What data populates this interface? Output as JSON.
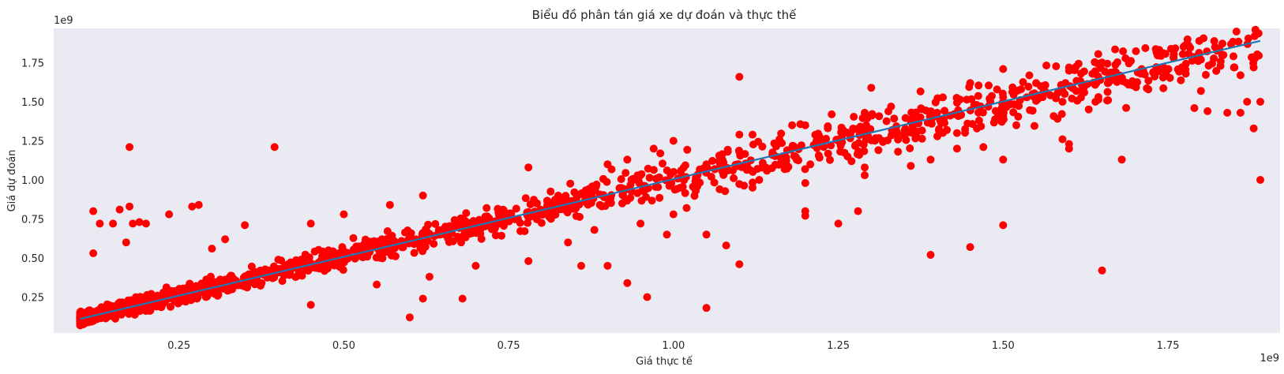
{
  "chart_data": {
    "type": "scatter",
    "title": "Biểu đồ phân tán giá xe dự đoán và thực thế",
    "xlabel": "Giá thực tế",
    "ylabel": "Giá dự đoán",
    "x_offset_text": "1e9",
    "y_offset_text": "1e9",
    "xlim": [
      0.06,
      1.92
    ],
    "ylim": [
      0.02,
      1.97
    ],
    "xticks": [
      0.25,
      0.5,
      0.75,
      1.0,
      1.25,
      1.5,
      1.75
    ],
    "xtick_labels": [
      "0.25",
      "0.50",
      "0.75",
      "1.00",
      "1.25",
      "1.50",
      "1.75"
    ],
    "yticks": [
      0.25,
      0.5,
      0.75,
      1.0,
      1.25,
      1.5,
      1.75
    ],
    "ytick_labels": [
      "0.25",
      "0.50",
      "0.75",
      "1.00",
      "1.25",
      "1.50",
      "1.75"
    ],
    "grid": false,
    "background_color": "#eaeaf2",
    "point_color": "#ff0000",
    "line_color": "#1f77b4",
    "trend_line": {
      "x": [
        0.1,
        1.89
      ],
      "y": [
        0.11,
        1.89
      ]
    },
    "scatter_band": {
      "x_min": 0.1,
      "x_max": 1.89,
      "slope": 0.995,
      "intercept": 0.012,
      "count": 1700
    },
    "outliers": [
      [
        0.175,
        1.21
      ],
      [
        0.395,
        1.21
      ],
      [
        0.12,
        0.8
      ],
      [
        0.13,
        0.72
      ],
      [
        0.15,
        0.72
      ],
      [
        0.16,
        0.81
      ],
      [
        0.175,
        0.83
      ],
      [
        0.18,
        0.72
      ],
      [
        0.19,
        0.73
      ],
      [
        0.2,
        0.72
      ],
      [
        0.235,
        0.78
      ],
      [
        0.27,
        0.83
      ],
      [
        0.28,
        0.84
      ],
      [
        0.17,
        0.6
      ],
      [
        0.12,
        0.53
      ],
      [
        0.35,
        0.71
      ],
      [
        0.45,
        0.2
      ],
      [
        0.6,
        0.12
      ],
      [
        0.62,
        0.24
      ],
      [
        0.68,
        0.24
      ],
      [
        0.86,
        0.45
      ],
      [
        0.9,
        0.45
      ],
      [
        0.93,
        0.34
      ],
      [
        0.96,
        0.25
      ],
      [
        1.05,
        0.18
      ],
      [
        1.08,
        0.58
      ],
      [
        1.1,
        0.46
      ],
      [
        1.1,
        1.66
      ],
      [
        1.2,
        0.8
      ],
      [
        1.2,
        0.77
      ],
      [
        1.25,
        0.72
      ],
      [
        1.28,
        0.8
      ],
      [
        1.3,
        1.59
      ],
      [
        1.39,
        0.52
      ],
      [
        1.45,
        0.57
      ],
      [
        1.5,
        0.71
      ],
      [
        1.5,
        1.71
      ],
      [
        1.6,
        1.72
      ],
      [
        1.65,
        0.42
      ],
      [
        1.68,
        1.13
      ],
      [
        1.79,
        1.46
      ],
      [
        1.8,
        1.57
      ],
      [
        1.81,
        1.44
      ],
      [
        1.84,
        1.43
      ],
      [
        1.86,
        1.43
      ],
      [
        1.87,
        1.5
      ],
      [
        1.88,
        1.72
      ],
      [
        1.88,
        1.33
      ],
      [
        1.89,
        1.5
      ],
      [
        1.89,
        1.0
      ],
      [
        1.85,
        1.72
      ],
      [
        1.86,
        1.67
      ],
      [
        1.8,
        1.77
      ],
      [
        1.71,
        1.71
      ],
      [
        1.74,
        1.71
      ],
      [
        1.66,
        1.65
      ],
      [
        1.59,
        1.5
      ],
      [
        1.59,
        1.26
      ],
      [
        1.6,
        1.2
      ],
      [
        1.6,
        1.23
      ],
      [
        1.64,
        1.5
      ],
      [
        1.55,
        1.62
      ],
      [
        1.56,
        1.53
      ],
      [
        1.45,
        1.62
      ],
      [
        1.4,
        1.43
      ],
      [
        1.43,
        1.3
      ],
      [
        1.43,
        1.2
      ],
      [
        1.39,
        1.13
      ],
      [
        1.36,
        1.09
      ],
      [
        1.33,
        1.47
      ],
      [
        1.52,
        1.35
      ],
      [
        1.5,
        1.45
      ],
      [
        1.46,
        1.48
      ],
      [
        1.47,
        1.21
      ],
      [
        1.5,
        1.13
      ],
      [
        1.5,
        1.41
      ],
      [
        1.5,
        1.53
      ],
      [
        1.29,
        1.43
      ],
      [
        1.27,
        1.12
      ],
      [
        1.29,
        1.08
      ],
      [
        1.29,
        1.03
      ],
      [
        1.2,
        1.35
      ],
      [
        1.18,
        1.35
      ],
      [
        1.1,
        1.29
      ],
      [
        1.12,
        1.29
      ],
      [
        1.15,
        1.16
      ],
      [
        1.24,
        1.42
      ],
      [
        1.07,
        1.12
      ],
      [
        1.0,
        1.25
      ],
      [
        0.93,
        1.13
      ],
      [
        0.97,
        1.2
      ],
      [
        0.98,
        1.17
      ],
      [
        1.05,
        1.1
      ],
      [
        1.14,
        1.08
      ],
      [
        1.13,
        1.0
      ],
      [
        1.2,
        0.98
      ],
      [
        1.07,
        0.94
      ],
      [
        1.09,
        1.06
      ],
      [
        1.1,
        1.18
      ],
      [
        0.78,
        1.08
      ],
      [
        0.9,
        1.1
      ],
      [
        0.95,
        1.03
      ],
      [
        0.5,
        0.78
      ],
      [
        0.45,
        0.72
      ],
      [
        0.62,
        0.9
      ],
      [
        0.57,
        0.84
      ],
      [
        0.3,
        0.56
      ],
      [
        0.32,
        0.62
      ],
      [
        0.55,
        0.33
      ],
      [
        0.63,
        0.38
      ],
      [
        0.7,
        0.45
      ],
      [
        0.78,
        0.48
      ],
      [
        0.84,
        0.6
      ],
      [
        0.88,
        0.68
      ],
      [
        0.95,
        0.72
      ],
      [
        1.0,
        0.78
      ],
      [
        1.02,
        0.82
      ],
      [
        0.99,
        0.65
      ],
      [
        1.05,
        0.65
      ],
      [
        1.12,
        0.95
      ]
    ]
  }
}
